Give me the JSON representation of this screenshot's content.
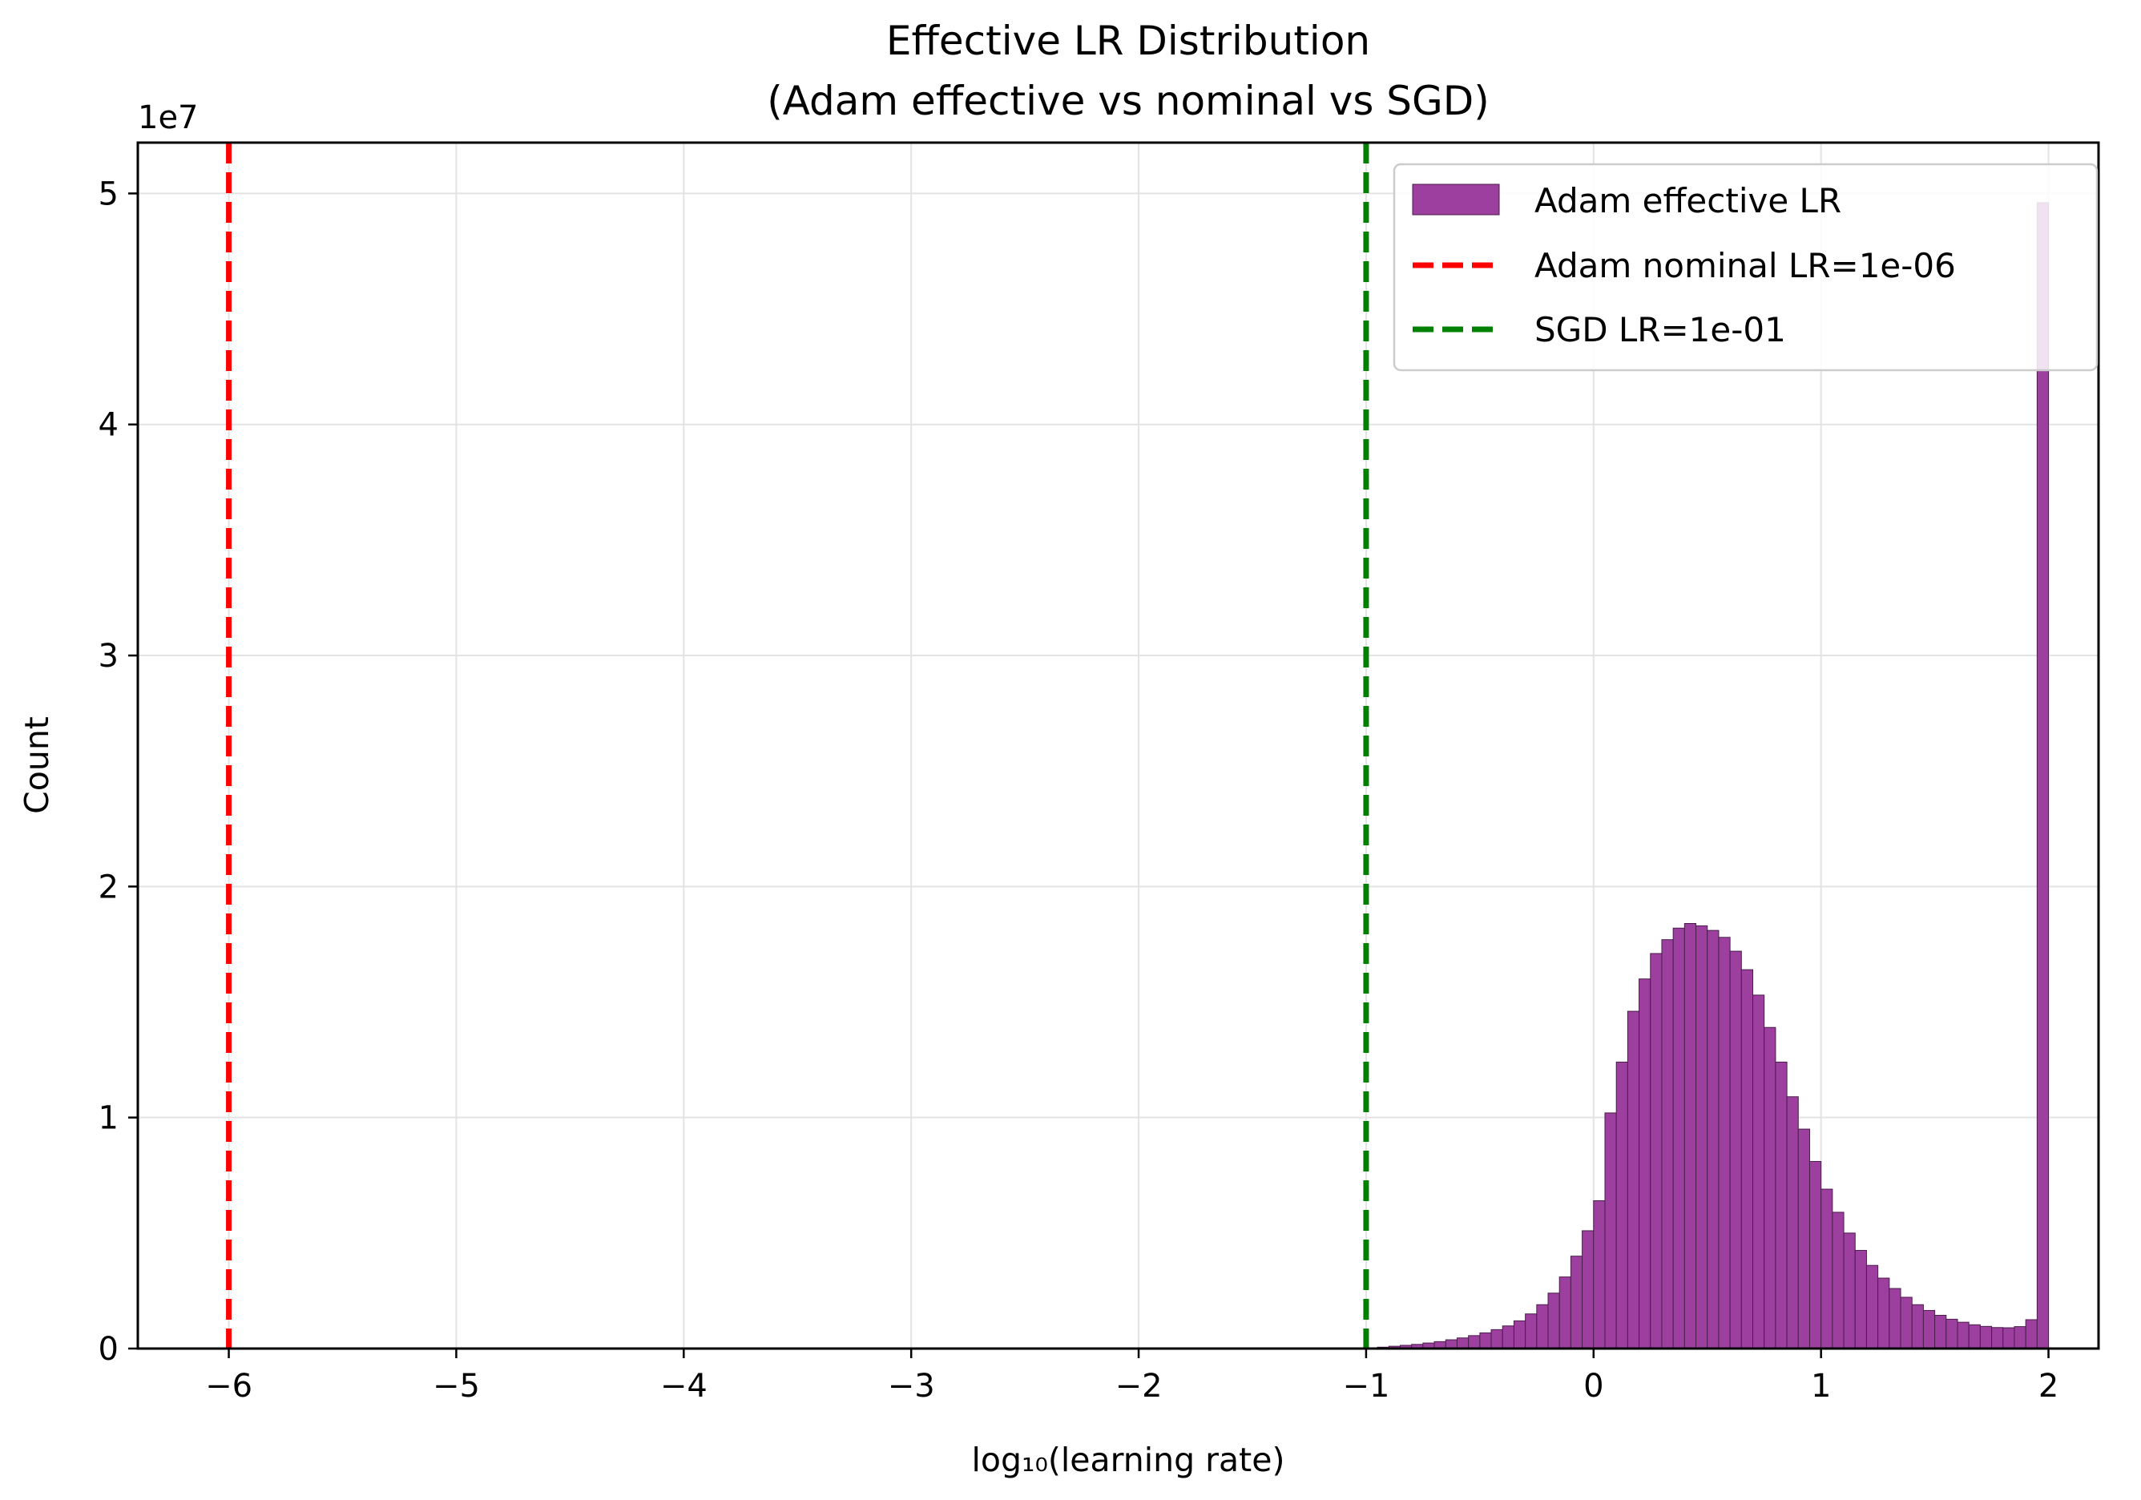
{
  "chart_data": {
    "type": "bar",
    "title_line1": "Effective LR Distribution",
    "title_line2": "(Adam effective vs nominal vs SGD)",
    "xlabel": "log₁₀(learning rate)",
    "ylabel": "Count",
    "y_offset_label": "1e7",
    "xlim": [
      -6.4,
      2.22
    ],
    "ylim": [
      0,
      5.22
    ],
    "x_scale_multiplier": 10000000,
    "grid": true,
    "legend_position": "top-right",
    "xticks": [
      -6,
      -5,
      -4,
      -3,
      -2,
      -1,
      0,
      1,
      2
    ],
    "xtick_labels": [
      "−6",
      "−5",
      "−4",
      "−3",
      "−2",
      "−1",
      "0",
      "1",
      "2"
    ],
    "yticks": [
      0,
      1,
      2,
      3,
      4,
      5
    ],
    "ytick_labels": [
      "0",
      "1",
      "2",
      "3",
      "4",
      "5"
    ],
    "bar_color": "#9c3f9e",
    "bar_edge_color": "#4a1e4b",
    "histogram": {
      "series_name": "Adam effective LR",
      "bin_start": -1.0,
      "bin_width": 0.05,
      "counts": [
        0.002,
        0.006,
        0.01,
        0.014,
        0.018,
        0.024,
        0.03,
        0.038,
        0.046,
        0.056,
        0.068,
        0.082,
        0.098,
        0.12,
        0.15,
        0.19,
        0.24,
        0.31,
        0.4,
        0.51,
        0.64,
        1.02,
        1.24,
        1.46,
        1.6,
        1.71,
        1.77,
        1.82,
        1.84,
        1.83,
        1.81,
        1.78,
        1.72,
        1.64,
        1.53,
        1.39,
        1.24,
        1.09,
        0.95,
        0.81,
        0.69,
        0.59,
        0.5,
        0.425,
        0.36,
        0.305,
        0.26,
        0.222,
        0.19,
        0.165,
        0.144,
        0.127,
        0.114,
        0.103,
        0.096,
        0.091,
        0.09,
        0.095,
        0.125,
        4.96
      ]
    },
    "reference_lines": [
      {
        "name": "Adam nominal LR=1e-06",
        "x": -6,
        "color": "#ff0000"
      },
      {
        "name": "SGD LR=1e-01",
        "x": -1,
        "color": "#008000"
      }
    ]
  }
}
